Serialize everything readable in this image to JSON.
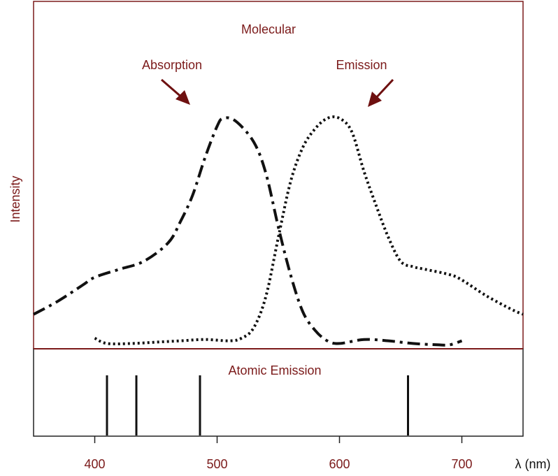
{
  "chart_data": [
    {
      "type": "line",
      "title": "Molecular",
      "ylabel": "Intensity",
      "xlim": [
        350,
        750
      ],
      "ylim": [
        0,
        1
      ],
      "annotations": [
        "Absorption",
        "Emission"
      ],
      "series": [
        {
          "name": "Absorption",
          "style": "dash-dot",
          "points": [
            [
              350,
              0.13
            ],
            [
              370,
              0.18
            ],
            [
              390,
              0.24
            ],
            [
              400,
              0.27
            ],
            [
              420,
              0.3
            ],
            [
              440,
              0.33
            ],
            [
              460,
              0.4
            ],
            [
              470,
              0.48
            ],
            [
              480,
              0.58
            ],
            [
              490,
              0.72
            ],
            [
              500,
              0.84
            ],
            [
              505,
              0.87
            ],
            [
              515,
              0.86
            ],
            [
              530,
              0.78
            ],
            [
              540,
              0.66
            ],
            [
              550,
              0.46
            ],
            [
              560,
              0.28
            ],
            [
              570,
              0.14
            ],
            [
              580,
              0.07
            ],
            [
              590,
              0.03
            ],
            [
              600,
              0.02
            ],
            [
              620,
              0.035
            ],
            [
              640,
              0.03
            ],
            [
              660,
              0.02
            ],
            [
              680,
              0.015
            ],
            [
              690,
              0.015
            ],
            [
              700,
              0.03
            ]
          ]
        },
        {
          "name": "Emission",
          "style": "dotted",
          "points": [
            [
              400,
              0.04
            ],
            [
              410,
              0.02
            ],
            [
              430,
              0.02
            ],
            [
              450,
              0.025
            ],
            [
              470,
              0.03
            ],
            [
              490,
              0.035
            ],
            [
              510,
              0.03
            ],
            [
              520,
              0.04
            ],
            [
              530,
              0.08
            ],
            [
              540,
              0.2
            ],
            [
              550,
              0.42
            ],
            [
              560,
              0.63
            ],
            [
              570,
              0.76
            ],
            [
              580,
              0.83
            ],
            [
              590,
              0.87
            ],
            [
              600,
              0.87
            ],
            [
              610,
              0.82
            ],
            [
              620,
              0.67
            ],
            [
              630,
              0.54
            ],
            [
              640,
              0.42
            ],
            [
              650,
              0.33
            ],
            [
              660,
              0.31
            ],
            [
              670,
              0.3
            ],
            [
              690,
              0.28
            ],
            [
              700,
              0.26
            ],
            [
              720,
              0.2
            ],
            [
              740,
              0.15
            ],
            [
              750,
              0.13
            ]
          ]
        }
      ],
      "colors": {
        "frame": "#7b1a1a",
        "text": "#7b1a1a",
        "arrow": "#6e1010",
        "ink": "#111111"
      }
    },
    {
      "type": "bar",
      "title": "Atomic Emission",
      "xlim": [
        350,
        750
      ],
      "xticks": [
        "400",
        "500",
        "600",
        "700"
      ],
      "xlabel": "λ (nm)",
      "lines_nm": [
        410,
        434,
        486,
        656
      ]
    }
  ]
}
